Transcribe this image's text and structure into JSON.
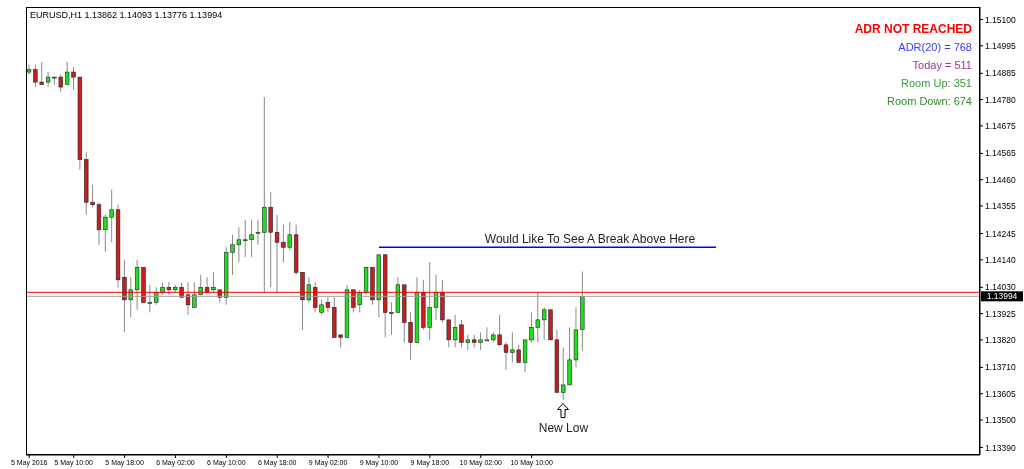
{
  "chart_data": {
    "type": "candlestick",
    "title": "EURUSD,H1  1.13862 1.14093 1.13776 1.13994",
    "categories": [
      "5 May 2016",
      null,
      null,
      null,
      null,
      null,
      null,
      "5 May 10:00",
      null,
      null,
      null,
      null,
      null,
      null,
      null,
      "5 May 18:00",
      null,
      null,
      null,
      null,
      null,
      null,
      null,
      "6 May 02:00",
      null,
      null,
      null,
      null,
      null,
      null,
      null,
      "6 May 10:00",
      null,
      null,
      null,
      null,
      null,
      null,
      null,
      "6 May 18:00",
      null,
      null,
      null,
      null,
      null,
      null,
      null,
      "9 May 02:00",
      null,
      null,
      null,
      null,
      null,
      null,
      null,
      "9 May 10:00",
      null,
      null,
      null,
      null,
      null,
      null,
      null,
      "9 May 18:00",
      null,
      null,
      null,
      null,
      null,
      null,
      null,
      "10 May 02:00",
      null,
      null,
      null,
      null,
      null,
      null,
      null,
      "10 May 10:00",
      null,
      null,
      null,
      null,
      null,
      null,
      null,
      null,
      null,
      null,
      null,
      null,
      null,
      null,
      null,
      null,
      null,
      null,
      null,
      null,
      null,
      null,
      null,
      null,
      null,
      null,
      null,
      null,
      null,
      null,
      null,
      null,
      null,
      null,
      null,
      null,
      null,
      null,
      null,
      null,
      null,
      null,
      null,
      null,
      null,
      null,
      null,
      null,
      null,
      null,
      null,
      null,
      null,
      null,
      null,
      null,
      null,
      null,
      null,
      null,
      null,
      null,
      null,
      null,
      null,
      null,
      null,
      null,
      null,
      null
    ],
    "ohlc": [
      [
        1.1489,
        1.1492,
        1.1488,
        1.149
      ],
      [
        1.149,
        1.1492,
        1.1483,
        1.1485
      ],
      [
        1.1485,
        1.1493,
        1.1484,
        1.1484
      ],
      [
        1.1485,
        1.1489,
        1.1483,
        1.1487
      ],
      [
        1.1487,
        1.1487,
        1.1484,
        1.1487
      ],
      [
        1.1487,
        1.1488,
        1.1481,
        1.1483
      ],
      [
        1.1484,
        1.1493,
        1.1484,
        1.1489
      ],
      [
        1.1489,
        1.1491,
        1.1482,
        1.1487
      ],
      [
        1.1487,
        1.1487,
        1.145,
        1.1454
      ],
      [
        1.1454,
        1.1457,
        1.1432,
        1.1437
      ],
      [
        1.1437,
        1.1444,
        1.1435,
        1.1436
      ],
      [
        1.1436,
        1.1437,
        1.142,
        1.1426
      ],
      [
        1.1426,
        1.1432,
        1.1417,
        1.1431
      ],
      [
        1.1431,
        1.1442,
        1.1421,
        1.1434
      ],
      [
        1.1434,
        1.1436,
        1.1403,
        1.1406
      ],
      [
        1.1407,
        1.1414,
        1.1385,
        1.1398
      ],
      [
        1.1398,
        1.1407,
        1.1391,
        1.1402
      ],
      [
        1.1402,
        1.1414,
        1.1394,
        1.1411
      ],
      [
        1.1411,
        1.1411,
        1.1397,
        1.1397
      ],
      [
        1.1397,
        1.1404,
        1.1393,
        1.1397
      ],
      [
        1.1397,
        1.1403,
        1.1396,
        1.1401
      ],
      [
        1.1401,
        1.1405,
        1.14,
        1.1403
      ],
      [
        1.1403,
        1.1405,
        1.14,
        1.1402
      ],
      [
        1.1402,
        1.1404,
        1.1401,
        1.1403
      ],
      [
        1.1403,
        1.1405,
        1.1399,
        1.1399
      ],
      [
        1.14,
        1.1405,
        1.1392,
        1.1396
      ],
      [
        1.1395,
        1.1405,
        1.1395,
        1.14
      ],
      [
        1.14,
        1.1408,
        1.14,
        1.1403
      ],
      [
        1.1403,
        1.1407,
        1.1401,
        1.1401
      ],
      [
        1.1402,
        1.1409,
        1.1401,
        1.1403
      ],
      [
        1.1402,
        1.1402,
        1.1397,
        1.1399
      ],
      [
        1.1399,
        1.1419,
        1.1396,
        1.1417
      ],
      [
        1.1417,
        1.1424,
        1.1408,
        1.142
      ],
      [
        1.142,
        1.1427,
        1.1413,
        1.1422
      ],
      [
        1.1422,
        1.143,
        1.1415,
        1.1422
      ],
      [
        1.1422,
        1.143,
        1.1415,
        1.1424
      ],
      [
        1.1425,
        1.143,
        1.142,
        1.1425
      ],
      [
        1.1425,
        1.1479,
        1.1401,
        1.1435
      ],
      [
        1.1435,
        1.1441,
        1.1403,
        1.1425
      ],
      [
        1.1425,
        1.1432,
        1.1401,
        1.1421
      ],
      [
        1.1421,
        1.1428,
        1.1413,
        1.1419
      ],
      [
        1.1419,
        1.1429,
        1.1418,
        1.1424
      ],
      [
        1.1424,
        1.1428,
        1.1408,
        1.1409
      ],
      [
        1.1409,
        1.1409,
        1.1386,
        1.1398
      ],
      [
        1.1398,
        1.1407,
        1.1397,
        1.1404
      ],
      [
        1.1403,
        1.1405,
        1.1393,
        1.1395
      ],
      [
        1.1393,
        1.1398,
        1.1392,
        1.1396
      ],
      [
        1.1397,
        1.1399,
        1.1393,
        1.1395
      ],
      [
        1.1395,
        1.1399,
        1.1383,
        1.1383
      ],
      [
        1.1384,
        1.1384,
        1.1379,
        1.1383
      ],
      [
        1.1383,
        1.1404,
        1.1383,
        1.1402
      ],
      [
        1.1402,
        1.1402,
        1.1393,
        1.1395
      ],
      [
        1.1396,
        1.1402,
        1.1393,
        1.1401
      ],
      [
        1.1401,
        1.1411,
        1.14,
        1.1411
      ],
      [
        1.1411,
        1.1411,
        1.1396,
        1.1398
      ],
      [
        1.1398,
        1.1416,
        1.1391,
        1.1416
      ],
      [
        1.1416,
        1.1416,
        1.1383,
        1.1393
      ],
      [
        1.1393,
        1.1397,
        1.1384,
        1.1393
      ],
      [
        1.1393,
        1.1407,
        1.1393,
        1.1404
      ],
      [
        1.1404,
        1.1404,
        1.1381,
        1.1389
      ],
      [
        1.1389,
        1.1393,
        1.1374,
        1.1381
      ],
      [
        1.1381,
        1.1407,
        1.1381,
        1.1401
      ],
      [
        1.1401,
        1.1406,
        1.1386,
        1.1387
      ],
      [
        1.1387,
        1.1413,
        1.1382,
        1.1395
      ],
      [
        1.1395,
        1.1408,
        1.139,
        1.1401
      ],
      [
        1.1401,
        1.1406,
        1.1389,
        1.139
      ],
      [
        1.139,
        1.139,
        1.1379,
        1.1382
      ],
      [
        1.1382,
        1.1392,
        1.1379,
        1.1387
      ],
      [
        1.1388,
        1.139,
        1.1379,
        1.1381
      ],
      [
        1.1381,
        1.1384,
        1.1378,
        1.1382
      ],
      [
        1.1382,
        1.1384,
        1.1379,
        1.1381
      ],
      [
        1.1381,
        1.1385,
        1.1378,
        1.1382
      ],
      [
        1.1382,
        1.1387,
        1.1382,
        1.1382
      ],
      [
        1.1382,
        1.1385,
        1.1381,
        1.1384
      ],
      [
        1.1384,
        1.1392,
        1.138,
        1.138
      ],
      [
        1.138,
        1.1381,
        1.137,
        1.1377
      ],
      [
        1.1377,
        1.1385,
        1.1373,
        1.1378
      ],
      [
        1.1378,
        1.138,
        1.1373,
        1.1373
      ],
      [
        1.1373,
        1.1382,
        1.1369,
        1.1382
      ],
      [
        1.1382,
        1.1393,
        1.1381,
        1.1387
      ],
      [
        1.1387,
        1.1401,
        1.1381,
        1.139
      ],
      [
        1.139,
        1.1395,
        1.1382,
        1.1394
      ],
      [
        1.1394,
        1.1394,
        1.1382,
        1.1382
      ],
      [
        1.1382,
        1.1386,
        1.1361,
        1.1361
      ],
      [
        1.1361,
        1.1379,
        1.1358,
        1.1364
      ],
      [
        1.1364,
        1.1387,
        1.1364,
        1.1374
      ],
      [
        1.1374,
        1.1395,
        1.1371,
        1.1386
      ],
      [
        1.13862,
        1.14093,
        1.13776,
        1.13994
      ],
      null,
      null,
      null,
      null,
      null,
      null,
      null,
      null,
      null,
      null,
      null,
      null,
      null,
      null,
      null,
      null,
      null,
      null,
      null,
      null,
      null,
      null,
      null,
      null,
      null,
      null,
      null,
      null,
      null,
      null,
      null,
      null,
      null,
      null,
      null,
      null,
      null,
      null,
      null,
      null,
      null,
      null,
      null,
      null,
      null,
      null,
      null,
      null,
      null,
      null,
      null,
      null,
      null,
      null,
      null,
      null,
      null,
      null,
      null,
      null,
      null,
      null
    ],
    "colors": [
      "#1fe01f",
      "#c81e1e",
      "#c81e1e",
      "#1fe01f",
      "#1fe01f",
      "#c81e1e",
      "#1fe01f",
      "#c81e1e",
      "#c81e1e",
      "#c81e1e",
      "#c81e1e",
      "#c81e1e",
      "#1fe01f",
      "#1fe01f",
      "#c81e1e",
      "#c81e1e",
      "#1fe01f",
      "#1fe01f",
      "#c81e1e",
      "#1fe01f",
      "#1fe01f",
      "#1fe01f",
      "#c81e1e",
      "#1fe01f",
      "#c81e1e",
      "#c81e1e",
      "#1fe01f",
      "#1fe01f",
      "#c81e1e",
      "#1fe01f",
      "#c81e1e",
      "#1fe01f",
      "#1fe01f",
      "#1fe01f",
      "#1fe01f",
      "#1fe01f",
      "#1fe01f",
      "#1fe01f",
      "#c81e1e",
      "#c81e1e",
      "#c81e1e",
      "#1fe01f",
      "#c81e1e",
      "#c81e1e",
      "#1fe01f",
      "#c81e1e",
      "#1fe01f",
      "#c81e1e",
      "#c81e1e",
      "#c81e1e",
      "#1fe01f",
      "#c81e1e",
      "#1fe01f",
      "#1fe01f",
      "#c81e1e",
      "#1fe01f",
      "#c81e1e",
      "#1fe01f",
      "#1fe01f",
      "#c81e1e",
      "#c81e1e",
      "#1fe01f",
      "#c81e1e",
      "#1fe01f",
      "#1fe01f",
      "#c81e1e",
      "#c81e1e",
      "#1fe01f",
      "#c81e1e",
      "#1fe01f",
      "#c81e1e",
      "#1fe01f",
      "#1fe01f",
      "#1fe01f",
      "#c81e1e",
      "#c81e1e",
      "#1fe01f",
      "#c81e1e",
      "#1fe01f",
      "#1fe01f",
      "#1fe01f",
      "#1fe01f",
      "#c81e1e",
      "#c81e1e",
      "#1fe01f",
      "#1fe01f",
      "#1fe01f",
      "#1fe01f",
      null,
      null,
      null,
      null,
      null,
      null,
      null,
      null,
      null,
      null,
      null,
      null,
      null,
      null,
      null,
      null,
      null,
      null,
      null,
      null,
      null,
      null,
      null,
      null,
      null,
      null,
      null,
      null,
      null,
      null,
      null,
      null,
      null,
      null,
      null,
      null,
      null,
      null,
      null,
      null,
      null,
      null,
      null,
      null,
      null,
      null,
      null,
      null,
      null,
      null,
      null,
      null,
      null,
      null,
      null,
      null,
      null,
      null,
      null,
      null,
      null,
      null
    ],
    "series": [
      {
        "type": "line",
        "color": "#0000ff",
        "values": [
          null,
          null,
          null,
          null,
          null,
          null,
          null,
          null,
          null,
          null,
          null,
          null,
          null,
          null,
          null,
          null,
          null,
          null,
          null,
          null,
          null,
          null,
          null,
          null,
          null,
          null,
          null,
          null,
          null,
          null,
          null,
          null,
          null,
          null,
          null,
          null,
          null,
          null,
          null,
          null,
          null,
          null,
          null,
          null,
          null,
          null,
          null,
          null,
          null,
          null,
          null,
          null,
          null,
          null,
          null,
          1.1419,
          null,
          null,
          null,
          null,
          null,
          null,
          null,
          null,
          null,
          null,
          null,
          null,
          null,
          null,
          null,
          null,
          null,
          null,
          null,
          null,
          null,
          null,
          null,
          null,
          null,
          null,
          null,
          null,
          null,
          null,
          null,
          null,
          null,
          null,
          null,
          null,
          null,
          null,
          null,
          null,
          null,
          null,
          null,
          null,
          null,
          null,
          null,
          null,
          null,
          null,
          null,
          null,
          1.1419,
          null,
          null,
          null,
          null,
          null,
          null,
          null,
          null,
          null,
          null,
          null,
          null,
          null,
          null,
          null,
          null,
          null,
          null,
          null,
          null,
          null,
          null,
          null,
          null,
          null,
          null,
          null,
          null,
          null,
          null,
          null,
          null,
          null,
          null,
          null,
          null,
          null,
          null,
          null,
          null,
          null
        ]
      }
    ],
    "ylim": [
      1.1336,
      1.1515
    ],
    "yticks": [
      {
        "value": 1.151,
        "label": "1.15100"
      },
      1.14995,
      1.14885,
      {
        "value": 1.1478,
        "label": "1.14780"
      },
      1.14675,
      1.14565,
      {
        "value": 1.1446,
        "label": "1.14460"
      },
      1.14355,
      1.14245,
      {
        "value": 1.1414,
        "label": "1.14140"
      },
      {
        "value": 1.1403,
        "label": "1.14030"
      },
      1.13925,
      {
        "value": 1.1382,
        "label": "1.13820"
      },
      {
        "value": 1.1371,
        "label": "1.13710"
      },
      1.13605,
      {
        "value": 1.135,
        "label": "1.13500"
      },
      {
        "value": 1.1339,
        "label": "1.13390"
      }
    ],
    "ref_lines": [
      {
        "axis": "y",
        "value": 1.1401,
        "color": "#ff0000"
      },
      {
        "axis": "y",
        "value": 1.13994,
        "label": "1.13994",
        "color": "#a0a0a0"
      }
    ],
    "annotations": [
      "Would Like To See A Break Above Here",
      "New Low",
      "ADR NOT REACHED",
      "ADR(20) = 768",
      "Today = 511",
      "Room Up: 351",
      "Room Down: 674"
    ]
  }
}
